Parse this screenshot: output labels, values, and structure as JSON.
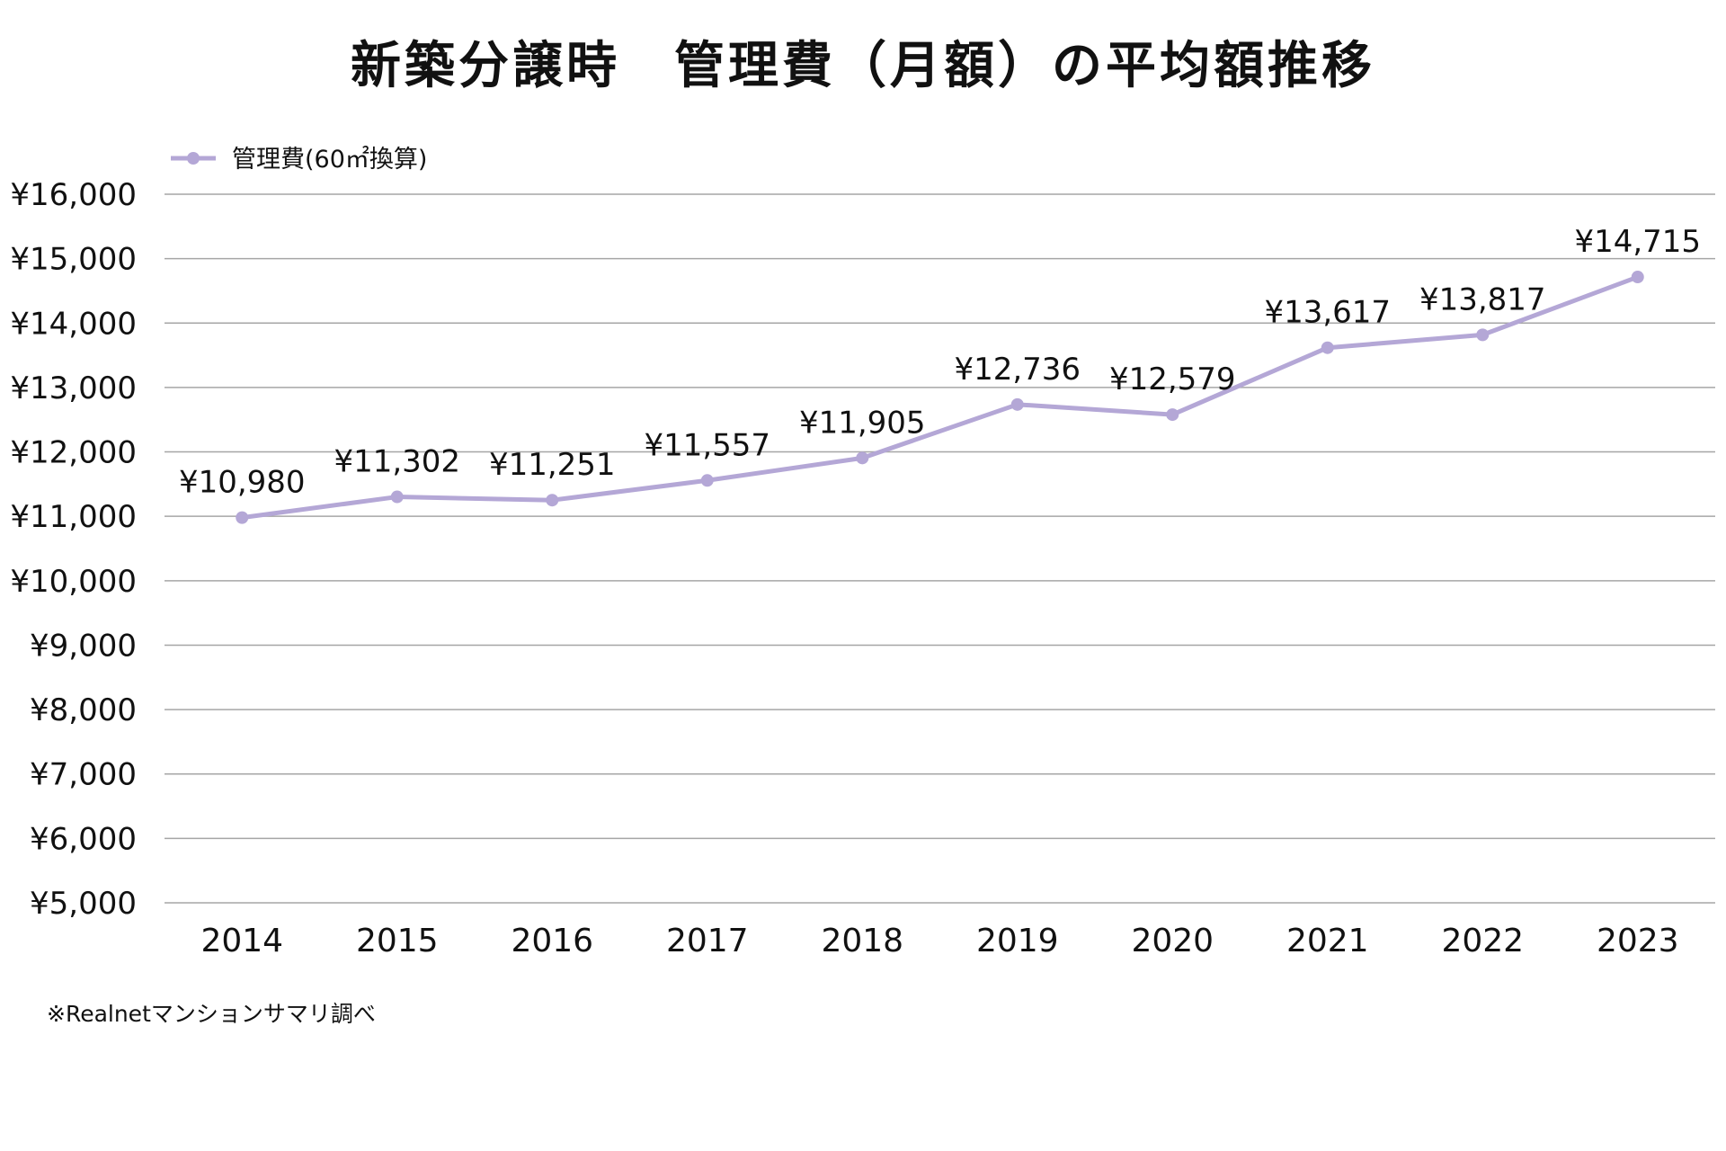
{
  "chart_data": {
    "type": "line",
    "title": "新築分譲時　管理費（月額）の平均額推移",
    "categories": [
      "2014",
      "2015",
      "2016",
      "2017",
      "2018",
      "2019",
      "2020",
      "2021",
      "2022",
      "2023"
    ],
    "series": [
      {
        "name": "管理費(60㎡換算)",
        "values": [
          10980,
          11302,
          11251,
          11557,
          11905,
          12736,
          12579,
          13617,
          13817,
          14715
        ],
        "labels": [
          "¥10,980",
          "¥11,302",
          "¥11,251",
          "¥11,557",
          "¥11,905",
          "¥12,736",
          "¥12,579",
          "¥13,617",
          "¥13,817",
          "¥14,715"
        ]
      }
    ],
    "ylim": [
      5000,
      16000
    ],
    "yticks": [
      5000,
      6000,
      7000,
      8000,
      9000,
      10000,
      11000,
      12000,
      13000,
      14000,
      15000,
      16000
    ],
    "ytick_labels": [
      "¥5,000",
      "¥6,000",
      "¥7,000",
      "¥8,000",
      "¥9,000",
      "¥10,000",
      "¥11,000",
      "¥12,000",
      "¥13,000",
      "¥14,000",
      "¥15,000",
      "¥16,000"
    ],
    "grid": true,
    "legend_position": "top-left",
    "series_color": "#b4a7d6",
    "source_note": "※Realnetマンションサマリ調べ"
  }
}
